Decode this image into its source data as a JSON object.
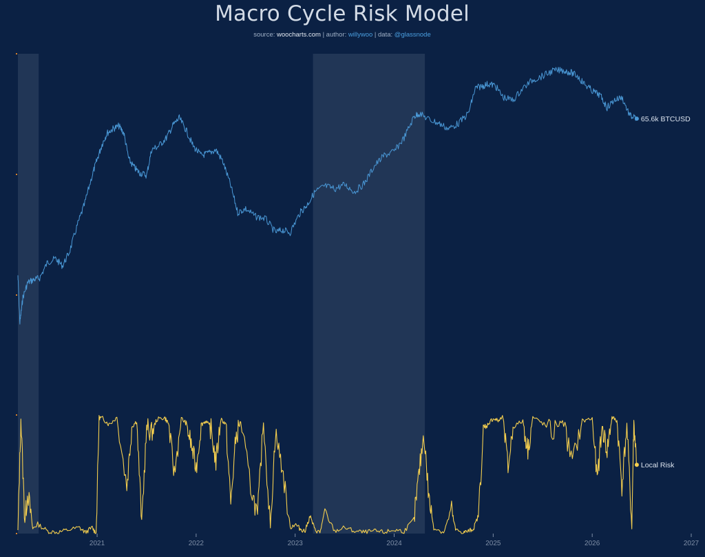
{
  "header": {
    "title": "Macro Cycle Risk Model",
    "source_prefix": "source:",
    "source_site": "woocharts.com",
    "sep1": "|",
    "author_prefix": "author:",
    "author": "willywoo",
    "sep2": "|",
    "data_prefix": "data:",
    "data_source": "@glassnode"
  },
  "colors": {
    "background": "#0b2144",
    "price_line": "#4a98d6",
    "risk_line": "#f5cf4f",
    "shade": "#2a3d5c",
    "axis_text": "#7e8ea6"
  },
  "chart_data": {
    "type": "line",
    "title": "Macro Cycle Risk Model",
    "x_axis": {
      "ticks": [
        "2021",
        "2022",
        "2023",
        "2024",
        "2025",
        "2026",
        "2027"
      ],
      "range": [
        2020.2,
        2027.0
      ]
    },
    "shaded_regions": [
      {
        "start": 2020.2,
        "end": 2020.41
      },
      {
        "start": 2023.18,
        "end": 2024.31
      }
    ],
    "series": [
      {
        "name": "BTCUSD",
        "end_label": "65.6k BTCUSD",
        "scale": "log",
        "x": [
          2020.2,
          2020.22,
          2020.25,
          2020.3,
          2020.36,
          2020.42,
          2020.5,
          2020.58,
          2020.65,
          2020.72,
          2020.8,
          2020.87,
          2020.95,
          2021.0,
          2021.05,
          2021.1,
          2021.16,
          2021.22,
          2021.27,
          2021.32,
          2021.38,
          2021.43,
          2021.5,
          2021.55,
          2021.62,
          2021.7,
          2021.77,
          2021.83,
          2021.9,
          2021.97,
          2022.05,
          2022.12,
          2022.2,
          2022.27,
          2022.35,
          2022.42,
          2022.5,
          2022.6,
          2022.7,
          2022.8,
          2022.87,
          2022.95,
          2023.05,
          2023.12,
          2023.2,
          2023.3,
          2023.4,
          2023.5,
          2023.6,
          2023.7,
          2023.8,
          2023.9,
          2024.0,
          2024.1,
          2024.2,
          2024.25,
          2024.35,
          2024.45,
          2024.55,
          2024.65,
          2024.75,
          2024.82,
          2024.88,
          2024.95,
          2025.02,
          2025.1,
          2025.2,
          2025.3,
          2025.4,
          2025.5,
          2025.6,
          2025.7,
          2025.78,
          2025.85,
          2025.92,
          2026.0,
          2026.08,
          2026.15,
          2026.22,
          2026.3,
          2026.38,
          2026.45
        ],
        "y": [
          9800,
          5500,
          7500,
          9000,
          9300,
          9500,
          11500,
          12000,
          11000,
          13000,
          18000,
          23000,
          33000,
          40000,
          48000,
          55000,
          58000,
          60000,
          55000,
          40000,
          36000,
          34000,
          33000,
          45000,
          47000,
          52000,
          61000,
          66000,
          57000,
          47000,
          42000,
          43000,
          45000,
          39000,
          29000,
          21000,
          22000,
          20000,
          19500,
          16500,
          17000,
          16500,
          21000,
          23000,
          27000,
          29000,
          28000,
          29500,
          27000,
          30000,
          37000,
          42000,
          44000,
          52000,
          67000,
          70000,
          65000,
          62000,
          58000,
          62000,
          70000,
          95000,
          97000,
          100000,
          98000,
          85000,
          82000,
          95000,
          105000,
          110000,
          117000,
          118000,
          115000,
          110000,
          100000,
          92000,
          87000,
          75000,
          82000,
          85000,
          68000,
          65600
        ]
      },
      {
        "name": "Local Risk",
        "end_label": "Local Risk",
        "scale": "linear",
        "ylim": [
          0,
          1
        ],
        "x": [
          2020.2,
          2020.23,
          2020.27,
          2020.3,
          2020.35,
          2020.4,
          2020.5,
          2020.6,
          2020.7,
          2020.82,
          2020.88,
          2020.95,
          2020.99,
          2021.02,
          2021.06,
          2021.12,
          2021.2,
          2021.3,
          2021.35,
          2021.4,
          2021.45,
          2021.5,
          2021.55,
          2021.6,
          2021.68,
          2021.72,
          2021.78,
          2021.85,
          2021.9,
          2021.95,
          2022.0,
          2022.05,
          2022.1,
          2022.15,
          2022.2,
          2022.25,
          2022.3,
          2022.35,
          2022.4,
          2022.45,
          2022.55,
          2022.62,
          2022.68,
          2022.75,
          2022.8,
          2022.87,
          2022.95,
          2023.0,
          2023.05,
          2023.1,
          2023.15,
          2023.2,
          2023.25,
          2023.3,
          2023.4,
          2023.5,
          2023.6,
          2023.7,
          2023.8,
          2023.9,
          2024.0,
          2024.1,
          2024.2,
          2024.25,
          2024.3,
          2024.35,
          2024.4,
          2024.5,
          2024.58,
          2024.62,
          2024.7,
          2024.75,
          2024.8,
          2024.85,
          2024.9,
          2024.95,
          2025.0,
          2025.05,
          2025.1,
          2025.15,
          2025.2,
          2025.3,
          2025.35,
          2025.4,
          2025.5,
          2025.6,
          2025.7,
          2025.8,
          2025.9,
          2026.0,
          2026.05,
          2026.1,
          2026.15,
          2026.2,
          2026.25,
          2026.3,
          2026.35,
          2026.4,
          2026.42,
          2026.45
        ],
        "y": [
          0.02,
          0.97,
          0.1,
          0.35,
          0.04,
          0.08,
          0.02,
          0.01,
          0.03,
          0.05,
          0.01,
          0.05,
          0.0,
          0.98,
          0.97,
          0.92,
          0.98,
          0.4,
          0.9,
          0.95,
          0.1,
          0.9,
          0.85,
          0.96,
          0.98,
          0.93,
          0.5,
          0.97,
          0.93,
          0.75,
          0.55,
          0.92,
          0.95,
          0.88,
          0.6,
          0.97,
          0.92,
          0.25,
          0.8,
          0.95,
          0.4,
          0.15,
          0.95,
          0.05,
          0.85,
          0.55,
          0.05,
          0.08,
          0.04,
          0.02,
          0.15,
          0.03,
          0.01,
          0.18,
          0.02,
          0.05,
          0.02,
          0.01,
          0.02,
          0.01,
          0.03,
          0.02,
          0.12,
          0.5,
          0.85,
          0.3,
          0.05,
          0.01,
          0.2,
          0.03,
          0.01,
          0.02,
          0.04,
          0.15,
          0.85,
          0.93,
          0.97,
          0.95,
          0.98,
          0.55,
          0.9,
          0.95,
          0.7,
          0.98,
          0.93,
          0.85,
          0.96,
          0.6,
          0.95,
          0.97,
          0.45,
          0.9,
          0.7,
          0.98,
          0.95,
          0.4,
          0.92,
          0.05,
          0.95,
          0.58
        ]
      }
    ]
  }
}
